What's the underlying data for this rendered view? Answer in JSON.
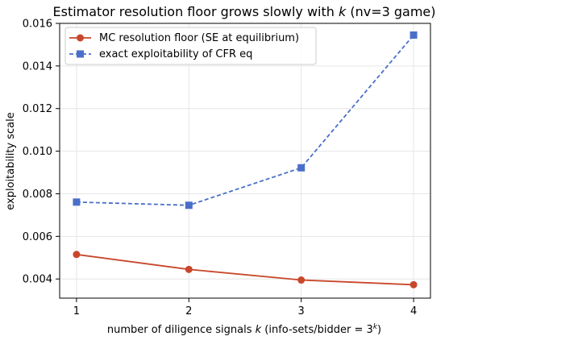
{
  "chart_data": {
    "type": "line",
    "title_main": "Estimator resolution floor grows slowly with ",
    "title_k": "k",
    "title_tail": " (nv=3 game)",
    "xlabel_main": "number of diligence signals ",
    "xlabel_k": "k",
    "xlabel_tail": " (info-sets/bidder  = 3",
    "xlabel_sup": "k",
    "xlabel_close": ")",
    "ylabel": "exploitability scale",
    "x": [
      1,
      2,
      3,
      4
    ],
    "xticks": [
      "1",
      "2",
      "3",
      "4"
    ],
    "xlim": [
      0.85,
      4.15
    ],
    "ylim": [
      0.0031,
      0.016
    ],
    "yticks": [
      "0.004",
      "0.006",
      "0.008",
      "0.010",
      "0.012",
      "0.014",
      "0.016"
    ],
    "ytick_values": [
      0.004,
      0.006,
      0.008,
      0.01,
      0.012,
      0.014,
      0.016
    ],
    "grid": true,
    "legend_position": "top-left",
    "series": [
      {
        "name": "MC resolution floor (SE at equilibrium)",
        "values": [
          0.00515,
          0.00445,
          0.00395,
          0.00373
        ],
        "color": "#c8472b",
        "marker": "circle",
        "dash": "solid"
      },
      {
        "name": "exact exploitability of CFR eq",
        "values": [
          0.00761,
          0.00746,
          0.00922,
          0.01545
        ],
        "color": "#4a6fc9",
        "marker": "square",
        "dash": "dashed"
      }
    ]
  }
}
